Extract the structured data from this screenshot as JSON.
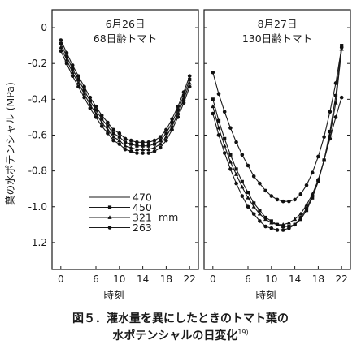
{
  "chart_data": {
    "type": "line",
    "ylabel": "葉の水ポテンシャル (MPa)",
    "xlabel": "時刻",
    "ylim": [
      -1.35,
      0.1
    ],
    "xlim": [
      -1.5,
      23.5
    ],
    "y_ticks": [
      0,
      -0.2,
      -0.4,
      -0.6,
      -0.8,
      -1.0,
      -1.2
    ],
    "y_tick_labels": [
      "0",
      "-0.2",
      "-0.4",
      "-0.6",
      "-0.8",
      "-1.0",
      "-1.2"
    ],
    "x_ticks": [
      0,
      6,
      10,
      14,
      18,
      22
    ],
    "x_tick_labels": [
      "0",
      "6",
      "10",
      "14",
      "18",
      "22"
    ],
    "legend": {
      "placement": "lower-left of left panel",
      "unit": "mm",
      "entries": [
        {
          "label": "470",
          "marker": "none"
        },
        {
          "label": "450",
          "marker": "square"
        },
        {
          "label": "321",
          "marker": "triangle"
        },
        {
          "label": "263",
          "marker": "circle"
        }
      ]
    },
    "panels": [
      {
        "title_line1": "6月26日",
        "title_line2": "68日齢トマト",
        "x": [
          0,
          1,
          2,
          3,
          4,
          5,
          6,
          7,
          8,
          9,
          10,
          11,
          12,
          13,
          14,
          15,
          16,
          17,
          18,
          19,
          20,
          21,
          22
        ],
        "series": [
          {
            "name": "470",
            "values": [
              -0.07,
              -0.14,
              -0.21,
              -0.27,
              -0.33,
              -0.39,
              -0.44,
              -0.49,
              -0.53,
              -0.57,
              -0.59,
              -0.62,
              -0.63,
              -0.64,
              -0.64,
              -0.64,
              -0.63,
              -0.61,
              -0.57,
              -0.51,
              -0.44,
              -0.36,
              -0.27
            ]
          },
          {
            "name": "450",
            "values": [
              -0.09,
              -0.16,
              -0.23,
              -0.29,
              -0.35,
              -0.41,
              -0.46,
              -0.51,
              -0.55,
              -0.59,
              -0.61,
              -0.64,
              -0.65,
              -0.66,
              -0.66,
              -0.66,
              -0.65,
              -0.63,
              -0.59,
              -0.53,
              -0.46,
              -0.38,
              -0.29
            ]
          },
          {
            "name": "321",
            "values": [
              -0.11,
              -0.18,
              -0.25,
              -0.31,
              -0.37,
              -0.43,
              -0.48,
              -0.53,
              -0.57,
              -0.61,
              -0.63,
              -0.66,
              -0.67,
              -0.68,
              -0.68,
              -0.68,
              -0.67,
              -0.65,
              -0.61,
              -0.55,
              -0.48,
              -0.4,
              -0.31
            ]
          },
          {
            "name": "263",
            "values": [
              -0.13,
              -0.2,
              -0.27,
              -0.33,
              -0.39,
              -0.45,
              -0.5,
              -0.55,
              -0.59,
              -0.63,
              -0.65,
              -0.68,
              -0.69,
              -0.7,
              -0.7,
              -0.7,
              -0.69,
              -0.67,
              -0.63,
              -0.57,
              -0.5,
              -0.42,
              -0.33
            ]
          }
        ]
      },
      {
        "title_line1": "8月27日",
        "title_line2": "130日齢トマト",
        "x": [
          0,
          1,
          2,
          3,
          4,
          5,
          6,
          7,
          8,
          9,
          10,
          11,
          12,
          13,
          14,
          15,
          16,
          17,
          18,
          19,
          20,
          21,
          22
        ],
        "series": [
          {
            "name": "470",
            "values": [
              -0.25,
              -0.37,
              -0.47,
              -0.56,
              -0.64,
              -0.71,
              -0.77,
              -0.83,
              -0.87,
              -0.91,
              -0.94,
              -0.96,
              -0.97,
              -0.97,
              -0.96,
              -0.93,
              -0.88,
              -0.81,
              -0.72,
              -0.61,
              -0.47,
              -0.31,
              -0.11
            ]
          },
          {
            "name": "450",
            "values": [
              -0.4,
              -0.52,
              -0.62,
              -0.71,
              -0.79,
              -0.86,
              -0.92,
              -0.98,
              -1.02,
              -1.06,
              -1.08,
              -1.1,
              -1.11,
              -1.11,
              -1.1,
              -1.07,
              -1.02,
              -0.95,
              -0.86,
              -0.74,
              -0.58,
              -0.38,
              -0.1
            ]
          },
          {
            "name": "321",
            "values": [
              -0.44,
              -0.56,
              -0.66,
              -0.75,
              -0.82,
              -0.89,
              -0.95,
              -1.0,
              -1.04,
              -1.07,
              -1.09,
              -1.1,
              -1.1,
              -1.09,
              -1.07,
              -1.04,
              -0.99,
              -0.93,
              -0.85,
              -0.74,
              -0.6,
              -0.42,
              -0.12
            ]
          },
          {
            "name": "263",
            "values": [
              -0.48,
              -0.6,
              -0.7,
              -0.79,
              -0.87,
              -0.94,
              -1.0,
              -1.04,
              -1.08,
              -1.11,
              -1.12,
              -1.13,
              -1.13,
              -1.12,
              -1.1,
              -1.06,
              -1.01,
              -0.94,
              -0.85,
              -0.74,
              -0.62,
              -0.5,
              -0.39
            ]
          }
        ]
      }
    ]
  },
  "caption": {
    "line1": "図５．灌水量を異にしたときのトマト葉の",
    "line2": "水ポテンシャルの日変化",
    "ref": "19)"
  }
}
